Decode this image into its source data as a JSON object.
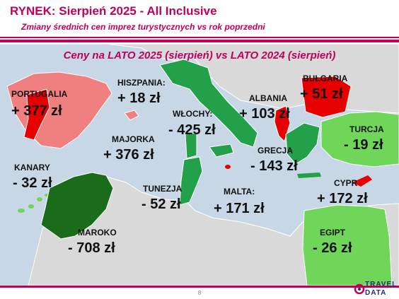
{
  "header": {
    "title": "RYNEK: Sierpień 2025 - All Inclusive",
    "subtitle": "Zmiany średnich cen imprez turystycznych vs rok poprzedni"
  },
  "map": {
    "title": "Ceny na LATO 2025 (sierpień) vs  LATO 2024 (sierpień)",
    "colors": {
      "sea": "#c8d7e6",
      "land": "#d9d9d9",
      "increase_strong": "#e60000",
      "increase_light": "#f08080",
      "decrease_green": "#22a04a",
      "decrease_dark": "#1a6b1a",
      "decrease_light": "#6fd65a"
    },
    "countries": [
      {
        "name": "PORTUGALIA",
        "value": "+ 377 zł"
      },
      {
        "name": "HISZPANIA:",
        "value": "+ 18 zł"
      },
      {
        "name": "MAJORKA",
        "value": "+ 376 zł"
      },
      {
        "name": "KANARY",
        "value": "- 32 zł"
      },
      {
        "name": "WŁOCHY:",
        "value": "- 425 zł"
      },
      {
        "name": "ALBANIA",
        "value": "+ 103 zł"
      },
      {
        "name": "BUŁGARIA",
        "value": "+ 51 zł"
      },
      {
        "name": "TURCJA",
        "value": "- 19 zł"
      },
      {
        "name": "GRECJA",
        "value": "- 143 zł"
      },
      {
        "name": "TUNEZJA",
        "value": "- 52 zł"
      },
      {
        "name": "MALTA:",
        "value": "+ 171 zł"
      },
      {
        "name": "CYPR",
        "value": "+ 172 zł"
      },
      {
        "name": "MAROKO",
        "value": "- 708 zł"
      },
      {
        "name": "EGIPT",
        "value": "- 26 zł"
      }
    ]
  },
  "footer": {
    "page_number": "8",
    "logo_line1": "TRAVEL",
    "logo_line2": "DATA"
  }
}
